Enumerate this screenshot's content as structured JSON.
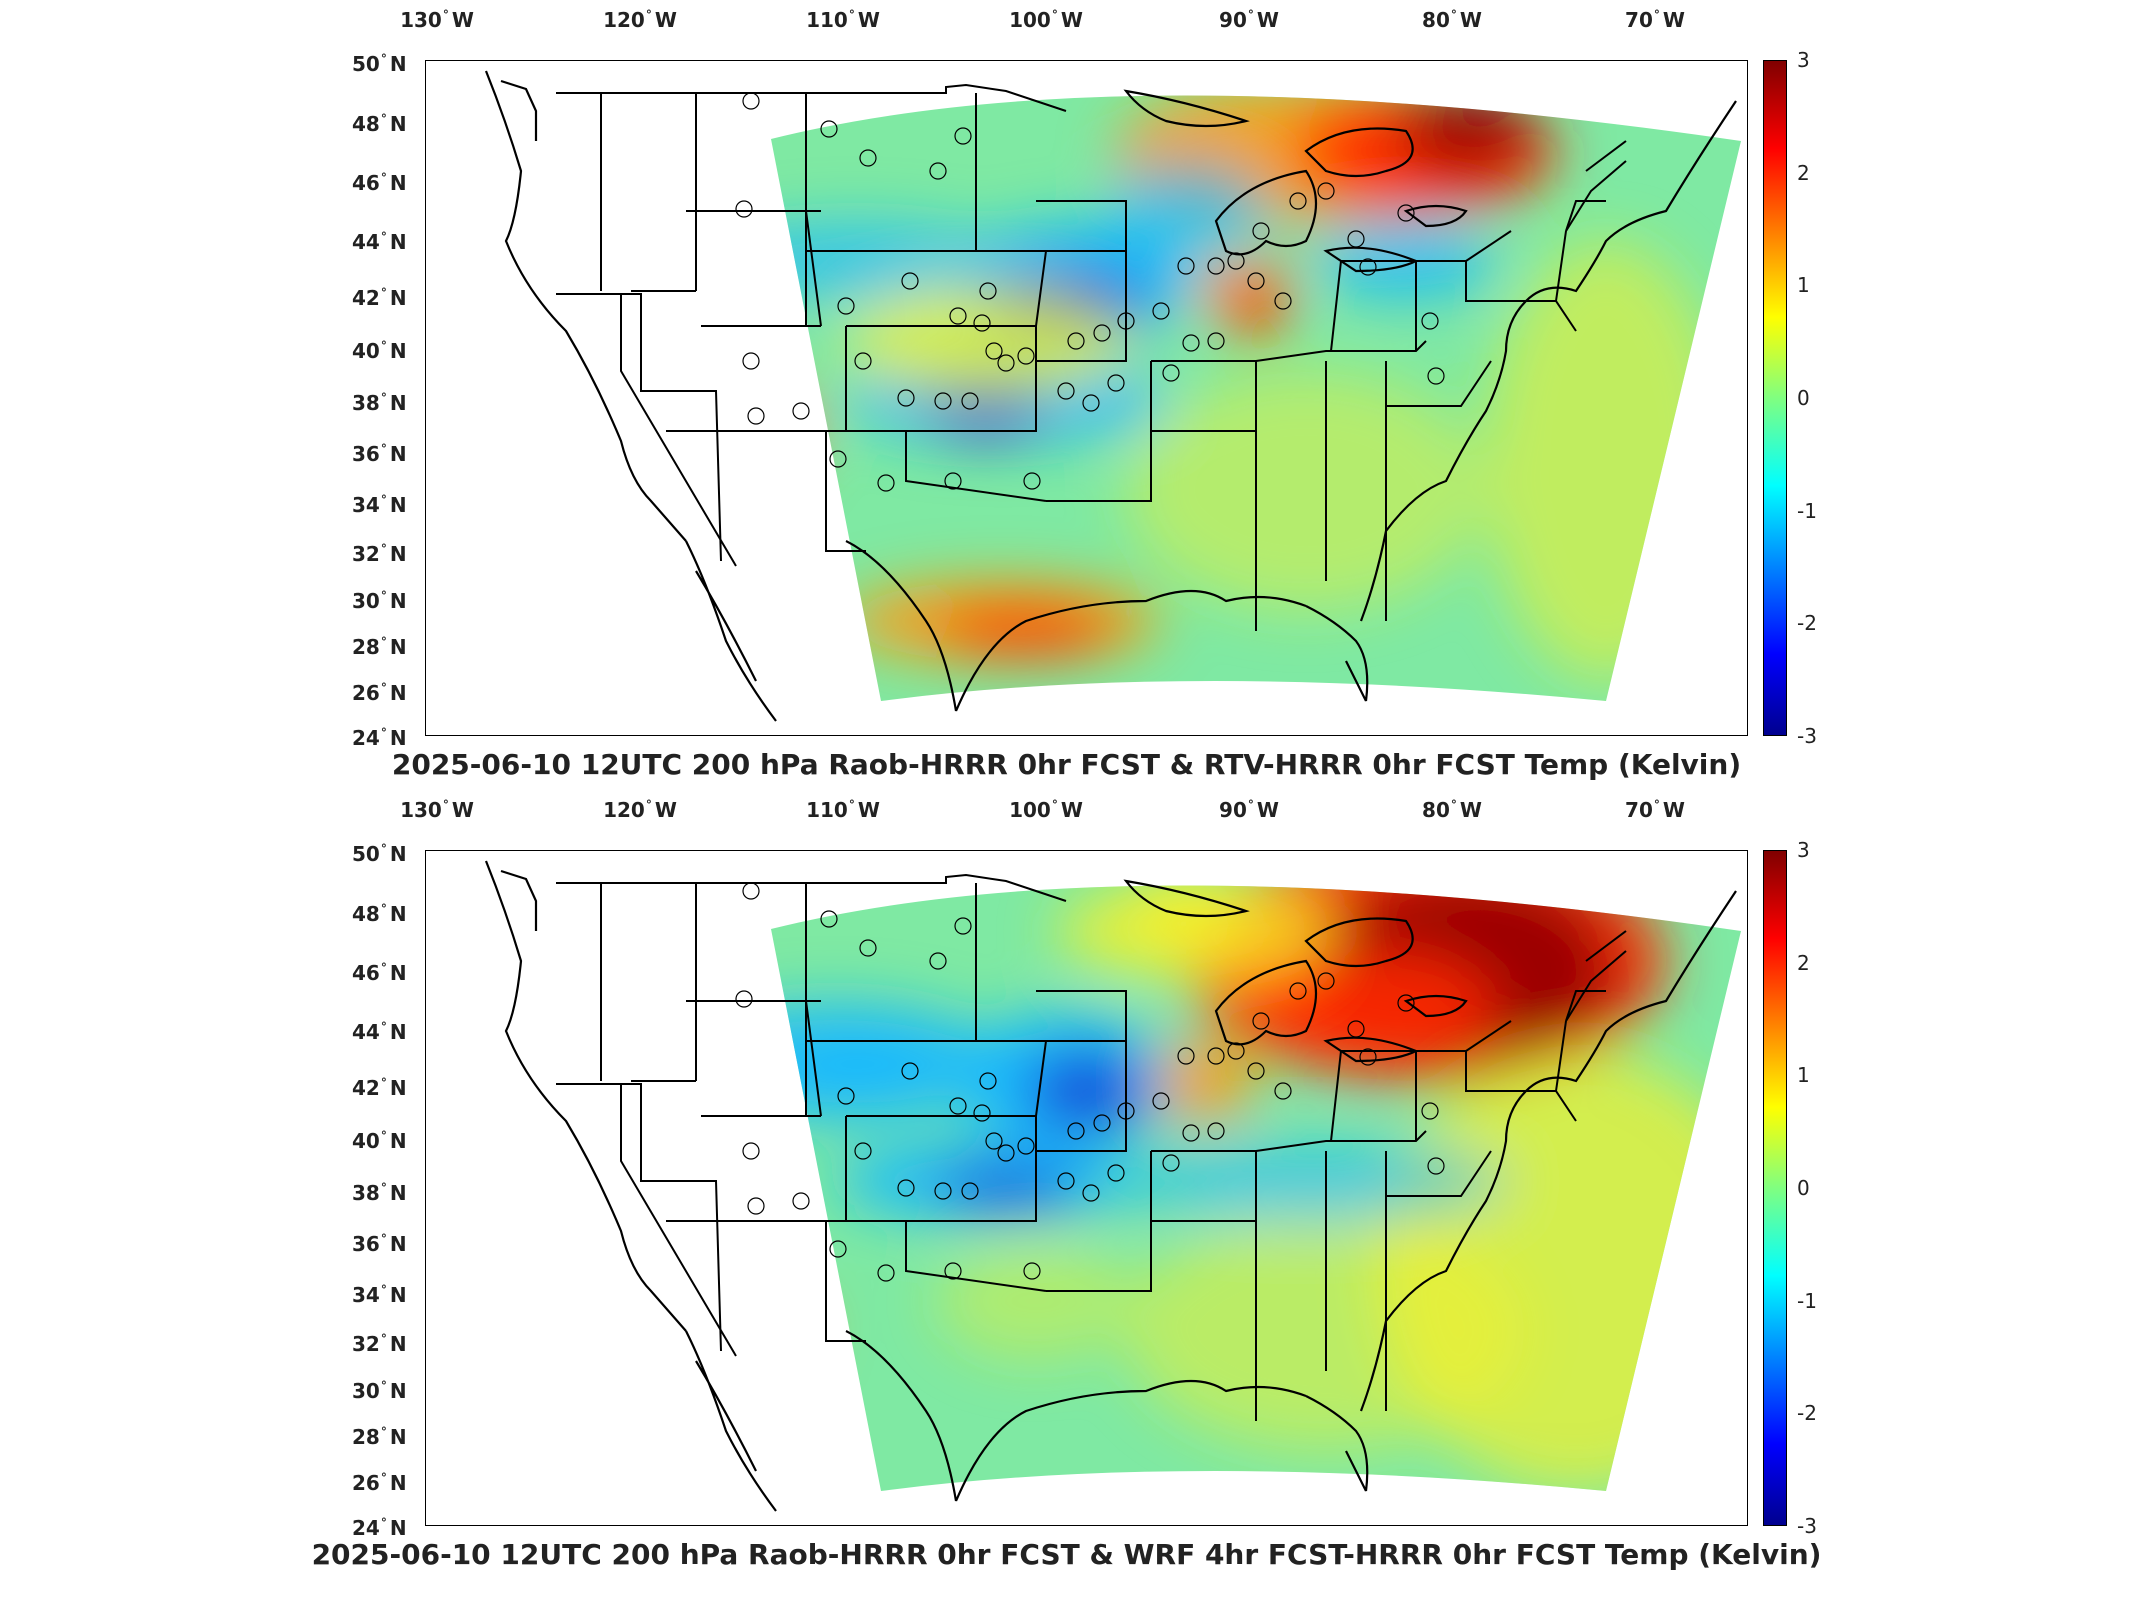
{
  "panels": [
    {
      "title": "2025-06-10 12UTC 200 hPa Raob-HRRR 0hr FCST & RTV-HRRR 0hr FCST Temp (Kelvin)",
      "colorbar": {
        "min": -3,
        "max": 3,
        "ticks": [
          "-3",
          "-2",
          "-1",
          "0",
          "1",
          "2",
          "3"
        ],
        "colormap": "jet"
      }
    },
    {
      "title": "2025-06-10 12UTC 200 hPa Raob-HRRR 0hr FCST & WRF 4hr FCST-HRRR 0hr FCST Temp (Kelvin)",
      "colorbar": {
        "min": -3,
        "max": 3,
        "ticks": [
          "-3",
          "-2",
          "-1",
          "0",
          "1",
          "2",
          "3"
        ],
        "colormap": "jet"
      }
    }
  ],
  "lon_labels": [
    {
      "deg": "130",
      "hemi": "W"
    },
    {
      "deg": "120",
      "hemi": "W"
    },
    {
      "deg": "110",
      "hemi": "W"
    },
    {
      "deg": "100",
      "hemi": "W"
    },
    {
      "deg": "90",
      "hemi": "W"
    },
    {
      "deg": "80",
      "hemi": "W"
    },
    {
      "deg": "70",
      "hemi": "W"
    }
  ],
  "lat_labels": [
    {
      "deg": "50",
      "hemi": "N"
    },
    {
      "deg": "48",
      "hemi": "N"
    },
    {
      "deg": "46",
      "hemi": "N"
    },
    {
      "deg": "44",
      "hemi": "N"
    },
    {
      "deg": "42",
      "hemi": "N"
    },
    {
      "deg": "40",
      "hemi": "N"
    },
    {
      "deg": "38",
      "hemi": "N"
    },
    {
      "deg": "36",
      "hemi": "N"
    },
    {
      "deg": "34",
      "hemi": "N"
    },
    {
      "deg": "32",
      "hemi": "N"
    },
    {
      "deg": "30",
      "hemi": "N"
    },
    {
      "deg": "28",
      "hemi": "N"
    },
    {
      "deg": "26",
      "hemi": "N"
    },
    {
      "deg": "24",
      "hemi": "N"
    }
  ],
  "colors": {
    "domain_base": "#7fe9a3",
    "warm": "#ff2a00",
    "hot": "#9b0000",
    "cool": "#18b8ff",
    "cold": "#1440d8",
    "yellow": "#f6f02a",
    "orange": "#ff9a12"
  }
}
